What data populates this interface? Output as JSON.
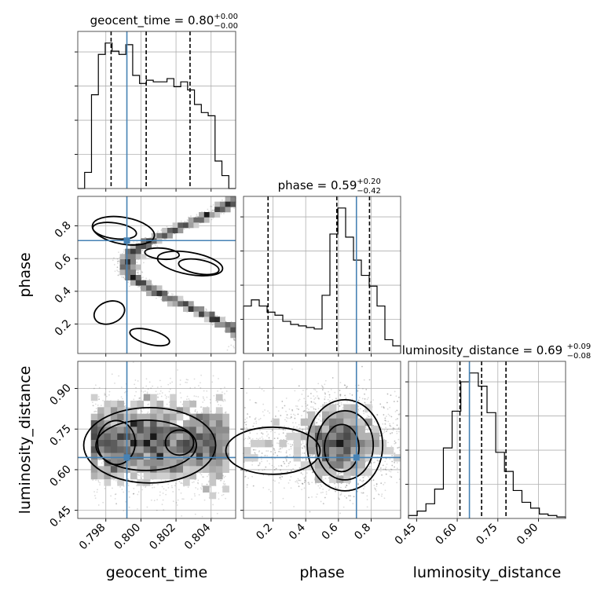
{
  "chart_data": {
    "type": "corner",
    "parameters": [
      "geocent_time",
      "phase",
      "luminosity_distance"
    ],
    "truth_color": "#4682b4",
    "titles": [
      {
        "param": "geocent_time",
        "text": "geocent_time = 0.80",
        "median": 0.8,
        "plus": "+0.00",
        "minus": "−0.00"
      },
      {
        "param": "phase",
        "text": "phase = 0.59",
        "median": 0.59,
        "plus": "+0.20",
        "minus": "−0.42"
      },
      {
        "param": "luminosity_distance",
        "text": "luminosity_distance = 0.69",
        "median": 0.69,
        "plus": "+0.09",
        "minus": "−0.08"
      }
    ],
    "axes": {
      "geocent_time": {
        "range": [
          0.7964,
          0.8054
        ],
        "ticks": [
          0.798,
          0.8,
          0.802,
          0.804
        ],
        "tick_labels": [
          "0.798",
          "0.800",
          "0.802",
          "0.804"
        ]
      },
      "phase": {
        "range": [
          0.02,
          0.98
        ],
        "ticks": [
          0.2,
          0.4,
          0.6,
          0.8
        ],
        "tick_labels": [
          "0.2",
          "0.4",
          "0.6",
          "0.8"
        ]
      },
      "luminosity_distance": {
        "range": [
          0.42,
          1.0
        ],
        "ticks": [
          0.45,
          0.6,
          0.75,
          0.9
        ],
        "tick_labels": [
          "0.45",
          "0.60",
          "0.75",
          "0.90"
        ]
      }
    },
    "truths": {
      "geocent_time": 0.7992,
      "phase": 0.71,
      "luminosity_distance": 0.645
    },
    "quantiles": {
      "geocent_time": [
        0.7983,
        0.8003,
        0.8028
      ],
      "phase": [
        0.17,
        0.59,
        0.79
      ],
      "luminosity_distance": [
        0.61,
        0.69,
        0.78
      ]
    },
    "histograms": {
      "geocent_time": [
        0,
        10,
        58,
        83,
        90,
        85,
        83,
        89,
        70,
        65,
        67,
        66,
        66,
        68,
        63,
        66,
        61,
        52,
        47,
        45,
        17,
        8,
        0
      ],
      "phase": [
        31,
        35,
        31,
        27,
        25,
        21,
        19,
        18,
        17,
        16,
        38,
        78,
        95,
        76,
        61,
        51,
        44,
        31,
        9,
        5
      ],
      "luminosity_distance": [
        2,
        5,
        10,
        20,
        48,
        73,
        93,
        99,
        90,
        72,
        45,
        32,
        19,
        11,
        7,
        3,
        2,
        1
      ]
    },
    "axis_labels": {
      "geocent_time": "geocent_time",
      "phase": "phase",
      "luminosity_distance": "luminosity_distance"
    }
  }
}
